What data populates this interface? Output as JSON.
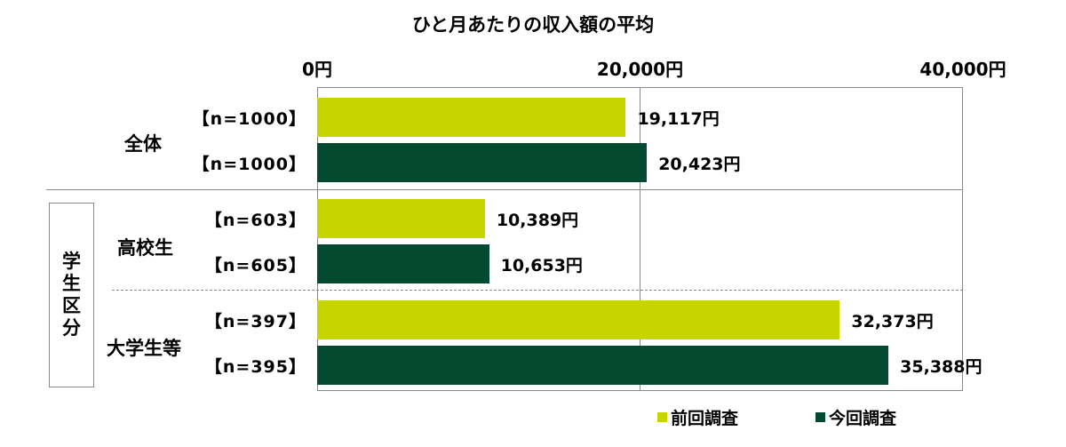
{
  "chart_data": {
    "type": "bar",
    "orientation": "horizontal",
    "title": "ひと月あたりの収入額の平均",
    "xlim": [
      0,
      40000
    ],
    "ticks": [
      {
        "value": 0,
        "label": "0円"
      },
      {
        "value": 20000,
        "label": "20,000円"
      },
      {
        "value": 40000,
        "label": "40,000円"
      }
    ],
    "grid": true,
    "legend_position": "bottom-right",
    "series": [
      {
        "name": "前回調査",
        "color": "#c8d400"
      },
      {
        "name": "今回調査",
        "color": "#034a31"
      }
    ],
    "bars": [
      {
        "group": "全体",
        "n_label": "【n=1000】",
        "series": "前回調査",
        "value": 19117,
        "value_label": "19,117円"
      },
      {
        "group": "全体",
        "n_label": "【n=1000】",
        "series": "今回調査",
        "value": 20423,
        "value_label": "20,423円"
      },
      {
        "group": "高校生",
        "n_label": "【n=603】",
        "series": "前回調査",
        "value": 10389,
        "value_label": "10,389円"
      },
      {
        "group": "高校生",
        "n_label": "【n=605】",
        "series": "今回調査",
        "value": 10653,
        "value_label": "10,653円"
      },
      {
        "group": "大学生等",
        "n_label": "【n=397】",
        "series": "前回調査",
        "value": 32373,
        "value_label": "32,373円"
      },
      {
        "group": "大学生等",
        "n_label": "【n=395】",
        "series": "今回調査",
        "value": 35388,
        "value_label": "35,388円"
      }
    ],
    "groups": [
      "全体",
      "高校生",
      "大学生等"
    ],
    "outer_group_label": "学生区分"
  }
}
